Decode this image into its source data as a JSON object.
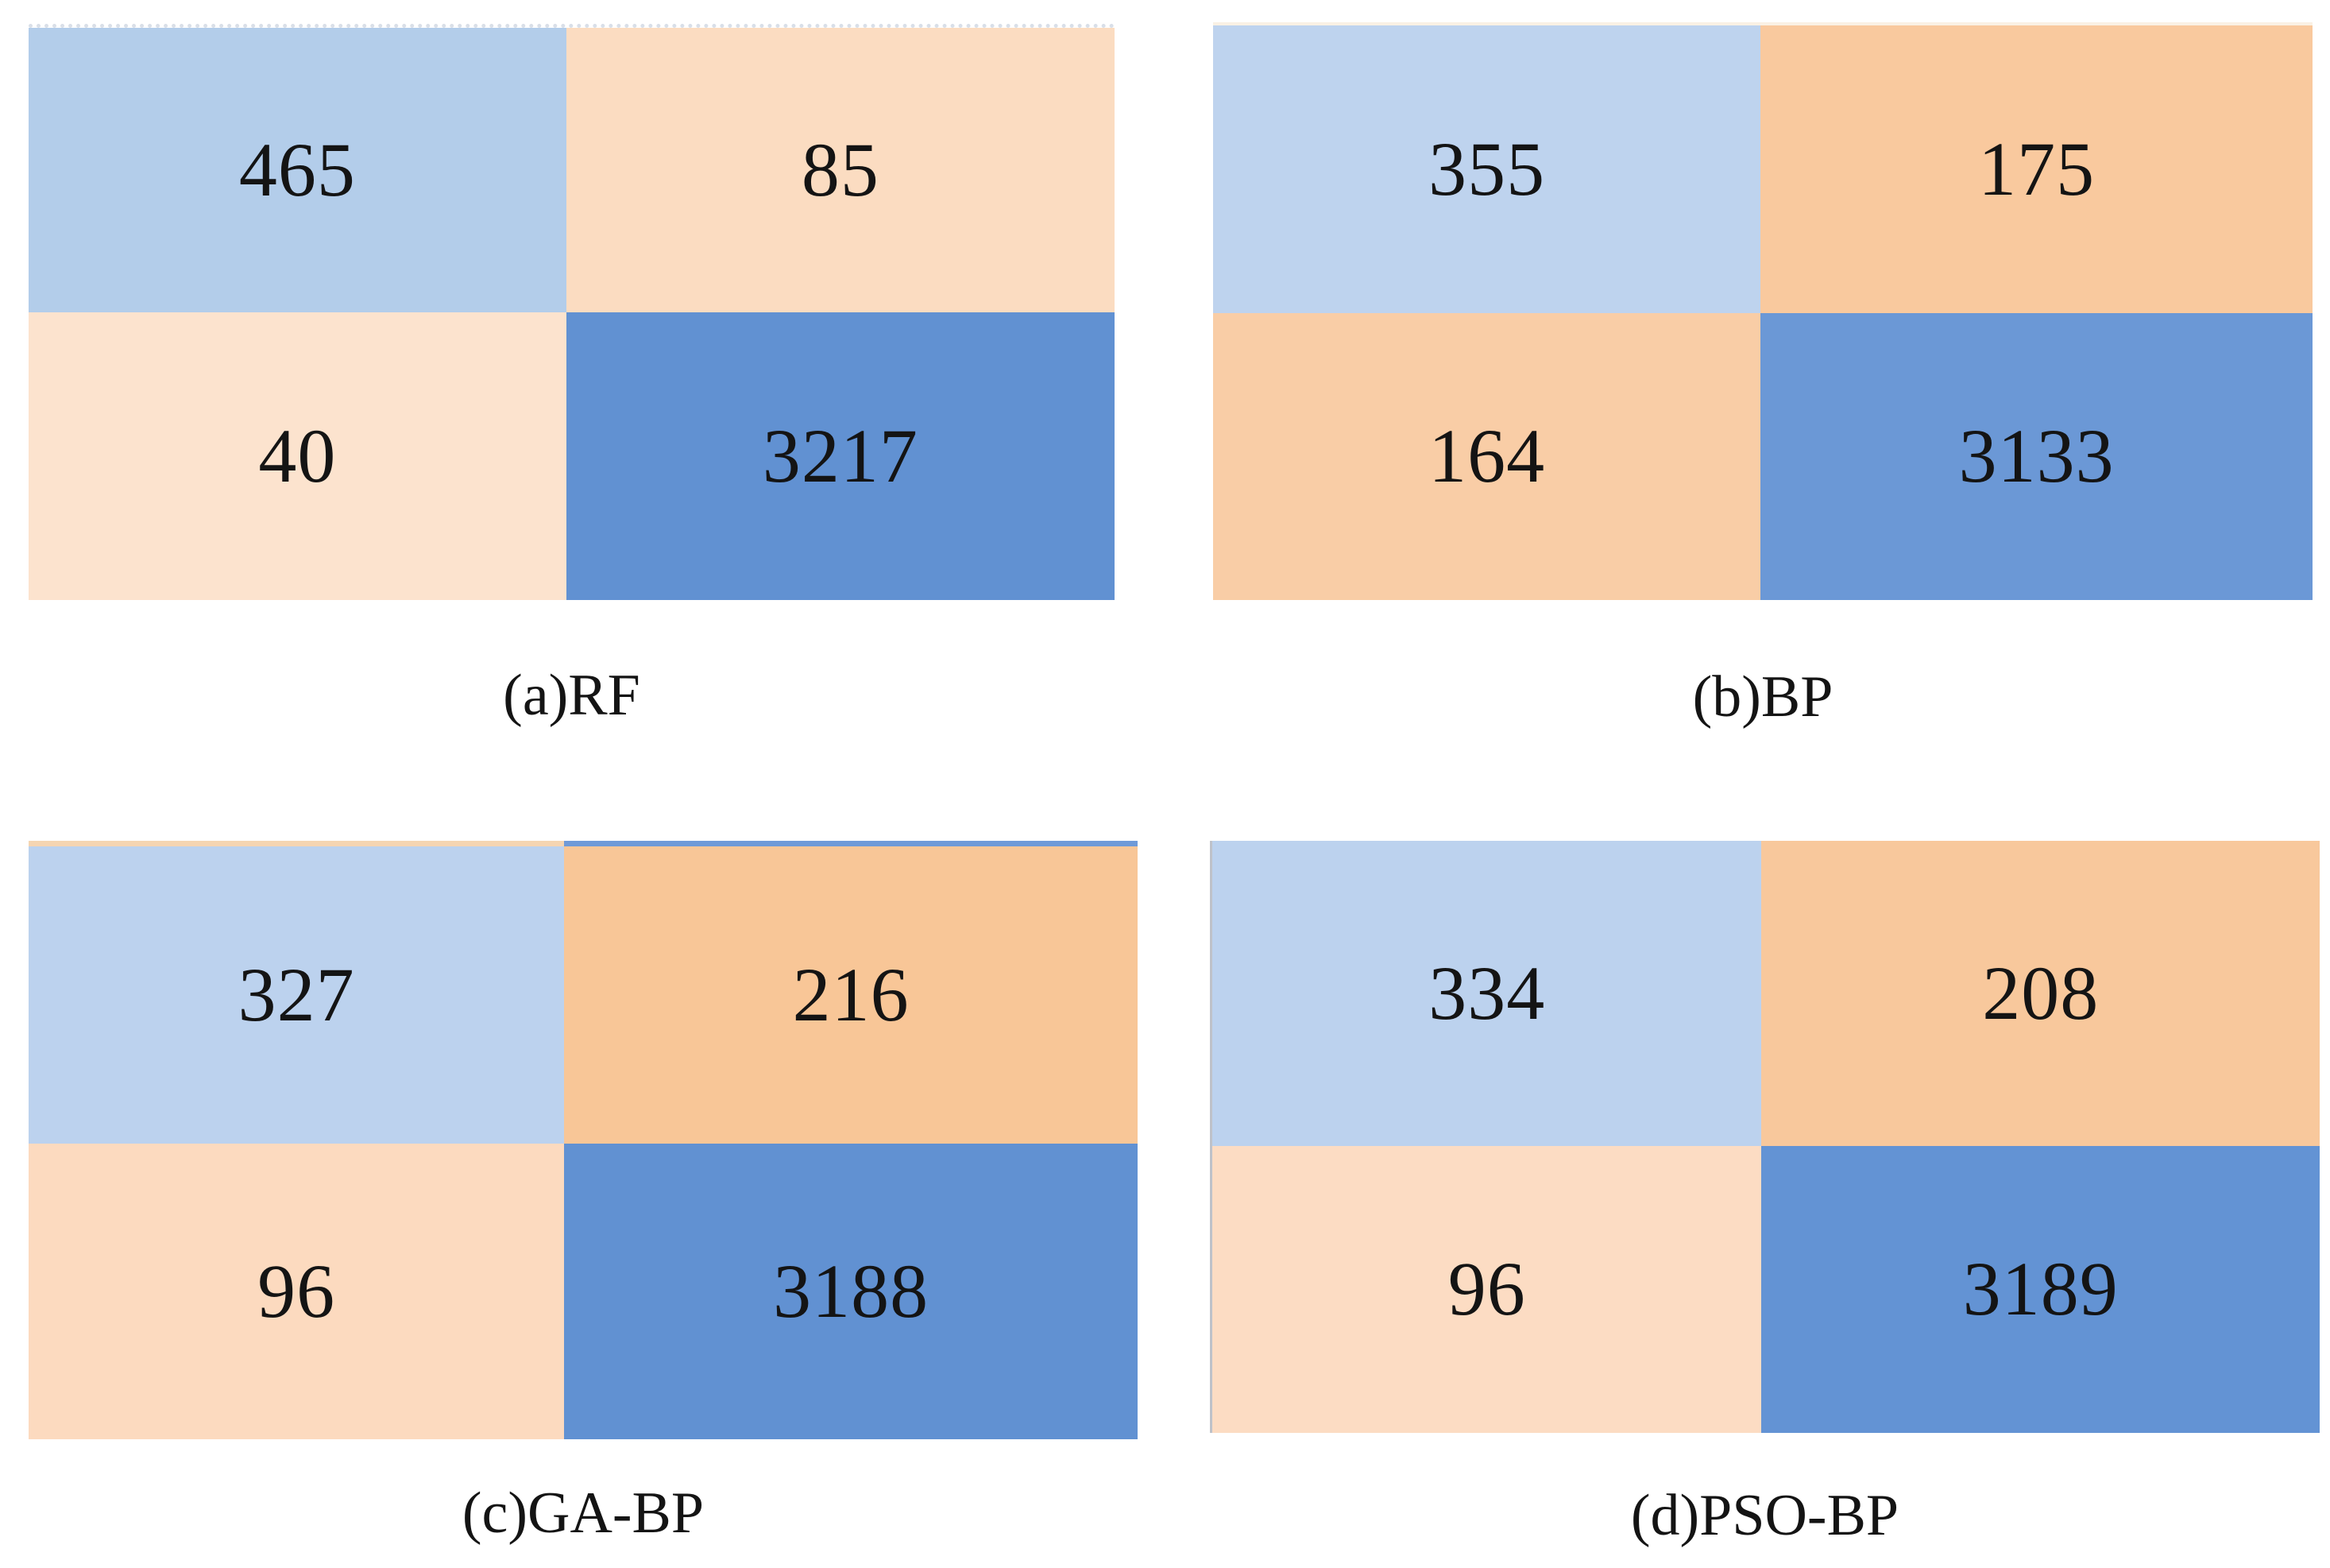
{
  "figure": {
    "background": "#ffffff",
    "text_color": "#141414"
  },
  "panels": [
    {
      "id": "rf",
      "caption": "(a)RF",
      "cells": [
        {
          "row": 0,
          "col": 0,
          "value": "465",
          "color": "#b3cdea"
        },
        {
          "row": 0,
          "col": 1,
          "value": "85",
          "color": "#fbdcc1"
        },
        {
          "row": 1,
          "col": 0,
          "value": "40",
          "color": "#fce3ce"
        },
        {
          "row": 1,
          "col": 1,
          "value": "3217",
          "color": "#6191d2"
        }
      ]
    },
    {
      "id": "bp",
      "caption": "(b)BP",
      "cells": [
        {
          "row": 0,
          "col": 0,
          "value": "355",
          "color": "#bed3ee"
        },
        {
          "row": 0,
          "col": 1,
          "value": "175",
          "color": "#f9c99e"
        },
        {
          "row": 1,
          "col": 0,
          "value": "164",
          "color": "#f9cda6"
        },
        {
          "row": 1,
          "col": 1,
          "value": "3133",
          "color": "#6b98d6"
        }
      ]
    },
    {
      "id": "ga-bp",
      "caption": "(c)GA-BP",
      "top_line": {
        "left": "#f5d5b2",
        "right": "#6f9ad8"
      },
      "cells": [
        {
          "row": 0,
          "col": 0,
          "value": "327",
          "color": "#bcd2ee"
        },
        {
          "row": 0,
          "col": 1,
          "value": "216",
          "color": "#f8c697"
        },
        {
          "row": 1,
          "col": 0,
          "value": "96",
          "color": "#fcdabf"
        },
        {
          "row": 1,
          "col": 1,
          "value": "3188",
          "color": "#6191d2"
        }
      ]
    },
    {
      "id": "pso-bp",
      "caption": "(d)PSO-BP",
      "cells": [
        {
          "row": 0,
          "col": 0,
          "value": "334",
          "color": "#bcd2ee"
        },
        {
          "row": 0,
          "col": 1,
          "value": "208",
          "color": "#f8c89c"
        },
        {
          "row": 1,
          "col": 0,
          "value": "96",
          "color": "#fcdcc3"
        },
        {
          "row": 1,
          "col": 1,
          "value": "3189",
          "color": "#6393d4"
        }
      ]
    }
  ],
  "chart_data": [
    {
      "type": "heatmap",
      "title": "(a)RF",
      "rows": 2,
      "cols": 2,
      "matrix": [
        [
          465,
          85
        ],
        [
          40,
          3217
        ]
      ],
      "cell_colors": [
        [
          "#b3cdea",
          "#fbdcc1"
        ],
        [
          "#fce3ce",
          "#6191d2"
        ]
      ],
      "legend": "none",
      "axis_labels": "none"
    },
    {
      "type": "heatmap",
      "title": "(b)BP",
      "rows": 2,
      "cols": 2,
      "matrix": [
        [
          355,
          175
        ],
        [
          164,
          3133
        ]
      ],
      "cell_colors": [
        [
          "#bed3ee",
          "#f9c99e"
        ],
        [
          "#f9cda6",
          "#6b98d6"
        ]
      ],
      "legend": "none",
      "axis_labels": "none"
    },
    {
      "type": "heatmap",
      "title": "(c)GA-BP",
      "rows": 2,
      "cols": 2,
      "matrix": [
        [
          327,
          216
        ],
        [
          96,
          3188
        ]
      ],
      "cell_colors": [
        [
          "#bcd2ee",
          "#f8c697"
        ],
        [
          "#fcdabf",
          "#6191d2"
        ]
      ],
      "legend": "none",
      "axis_labels": "none"
    },
    {
      "type": "heatmap",
      "title": "(d)PSO-BP",
      "rows": 2,
      "cols": 2,
      "matrix": [
        [
          334,
          208
        ],
        [
          96,
          3189
        ]
      ],
      "cell_colors": [
        [
          "#bcd2ee",
          "#f8c89c"
        ],
        [
          "#fcdcc3",
          "#6393d4"
        ]
      ],
      "legend": "none",
      "axis_labels": "none"
    }
  ]
}
